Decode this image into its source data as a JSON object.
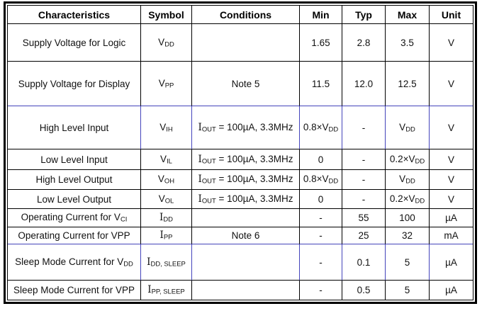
{
  "style": {
    "table_border_black": "#000000",
    "accent_line_blue": "#4444bb",
    "text_color": "#111111",
    "background": "#ffffff"
  },
  "table": {
    "columns": [
      "Characteristics",
      "Symbol",
      "Conditions",
      "Min",
      "Typ",
      "Max",
      "Unit"
    ],
    "rows": [
      {
        "name": "supply-voltage-for-logic",
        "blue": false,
        "cells": [
          [
            {
              "t": "Supply Voltage for Logic"
            }
          ],
          [
            {
              "t": "V"
            },
            {
              "t": "DD",
              "sub": true
            }
          ],
          [],
          [
            {
              "t": "1.65"
            }
          ],
          [
            {
              "t": "2.8"
            }
          ],
          [
            {
              "t": "3.5"
            }
          ],
          [
            {
              "t": "V"
            }
          ]
        ]
      },
      {
        "name": "supply-voltage-for-display",
        "blue": false,
        "cells": [
          [
            {
              "t": "Supply Voltage for Display"
            }
          ],
          [
            {
              "t": "V"
            },
            {
              "t": "PP",
              "sub": true
            }
          ],
          [
            {
              "t": "Note 5"
            }
          ],
          [
            {
              "t": "11.5"
            }
          ],
          [
            {
              "t": "12.0"
            }
          ],
          [
            {
              "t": "12.5"
            }
          ],
          [
            {
              "t": "V"
            }
          ]
        ]
      },
      {
        "name": "high-level-input",
        "blue": true,
        "cells": [
          [
            {
              "t": "High Level Input"
            }
          ],
          [
            {
              "t": "V"
            },
            {
              "t": "IH",
              "sub": true
            }
          ],
          [
            {
              "t": "I",
              "serif": true
            },
            {
              "t": "OUT",
              "sub": true
            },
            {
              "t": " = 100µA, 3.3MHz"
            }
          ],
          [
            {
              "t": "0.8×V"
            },
            {
              "t": "DD",
              "sub": true
            }
          ],
          [
            {
              "t": "-"
            }
          ],
          [
            {
              "t": "V"
            },
            {
              "t": "DD",
              "sub": true
            }
          ],
          [
            {
              "t": "V"
            }
          ]
        ]
      },
      {
        "name": "low-level-input",
        "blue": false,
        "cells": [
          [
            {
              "t": "Low Level Input"
            }
          ],
          [
            {
              "t": "V"
            },
            {
              "t": "IL",
              "sub": true
            }
          ],
          [
            {
              "t": "I",
              "serif": true
            },
            {
              "t": "OUT",
              "sub": true
            },
            {
              "t": " = 100µA, 3.3MHz"
            }
          ],
          [
            {
              "t": "0"
            }
          ],
          [
            {
              "t": "-"
            }
          ],
          [
            {
              "t": "0.2×V"
            },
            {
              "t": "DD",
              "sub": true
            }
          ],
          [
            {
              "t": "V"
            }
          ]
        ]
      },
      {
        "name": "high-level-output",
        "blue": false,
        "cells": [
          [
            {
              "t": "High Level Output"
            }
          ],
          [
            {
              "t": "V"
            },
            {
              "t": "OH",
              "sub": true
            }
          ],
          [
            {
              "t": "I",
              "serif": true
            },
            {
              "t": "OUT",
              "sub": true
            },
            {
              "t": " = 100µA, 3.3MHz"
            }
          ],
          [
            {
              "t": "0.8×V"
            },
            {
              "t": "DD",
              "sub": true
            }
          ],
          [
            {
              "t": "-"
            }
          ],
          [
            {
              "t": "V"
            },
            {
              "t": "DD",
              "sub": true
            }
          ],
          [
            {
              "t": "V"
            }
          ]
        ]
      },
      {
        "name": "low-level-output",
        "blue": false,
        "cells": [
          [
            {
              "t": "Low Level Output"
            }
          ],
          [
            {
              "t": "V"
            },
            {
              "t": "OL",
              "sub": true
            }
          ],
          [
            {
              "t": "I",
              "serif": true
            },
            {
              "t": "OUT",
              "sub": true
            },
            {
              "t": " = 100µA, 3.3MHz"
            }
          ],
          [
            {
              "t": "0"
            }
          ],
          [
            {
              "t": "-"
            }
          ],
          [
            {
              "t": "0.2×V"
            },
            {
              "t": "DD",
              "sub": true
            }
          ],
          [
            {
              "t": "V"
            }
          ]
        ]
      },
      {
        "name": "operating-current-for-vci",
        "blue": false,
        "cells": [
          [
            {
              "t": "Operating Current for V"
            },
            {
              "t": "CI",
              "sub": true
            }
          ],
          [
            {
              "t": "I",
              "serif": true
            },
            {
              "t": "DD",
              "sub": true
            }
          ],
          [],
          [
            {
              "t": "-"
            }
          ],
          [
            {
              "t": "55"
            }
          ],
          [
            {
              "t": "100"
            }
          ],
          [
            {
              "t": "µA"
            }
          ]
        ]
      },
      {
        "name": "operating-current-for-vpp",
        "blue": false,
        "cells": [
          [
            {
              "t": "Operating Current for VPP"
            }
          ],
          [
            {
              "t": "I",
              "serif": true
            },
            {
              "t": "PP",
              "sub": true
            }
          ],
          [
            {
              "t": "Note 6"
            }
          ],
          [
            {
              "t": "-"
            }
          ],
          [
            {
              "t": "25"
            }
          ],
          [
            {
              "t": "32"
            }
          ],
          [
            {
              "t": "mA"
            }
          ]
        ]
      },
      {
        "name": "sleep-mode-current-for-vdd",
        "blue": true,
        "cells": [
          [
            {
              "t": "Sleep Mode Current for V"
            },
            {
              "t": "DD",
              "sub": true
            }
          ],
          [
            {
              "t": "I",
              "serif": true
            },
            {
              "t": "DD, SLEEP",
              "sub": true
            }
          ],
          [],
          [
            {
              "t": "-"
            }
          ],
          [
            {
              "t": "0.1"
            }
          ],
          [
            {
              "t": "5"
            }
          ],
          [
            {
              "t": "µA"
            }
          ]
        ]
      },
      {
        "name": "sleep-mode-current-for-vpp",
        "blue": false,
        "cells": [
          [
            {
              "t": "Sleep Mode Current for VPP"
            }
          ],
          [
            {
              "t": "I",
              "serif": true
            },
            {
              "t": "PP, SLEEP",
              "sub": true
            }
          ],
          [],
          [
            {
              "t": "-"
            }
          ],
          [
            {
              "t": "0.5"
            }
          ],
          [
            {
              "t": "5"
            }
          ],
          [
            {
              "t": "µA"
            }
          ]
        ]
      }
    ]
  }
}
